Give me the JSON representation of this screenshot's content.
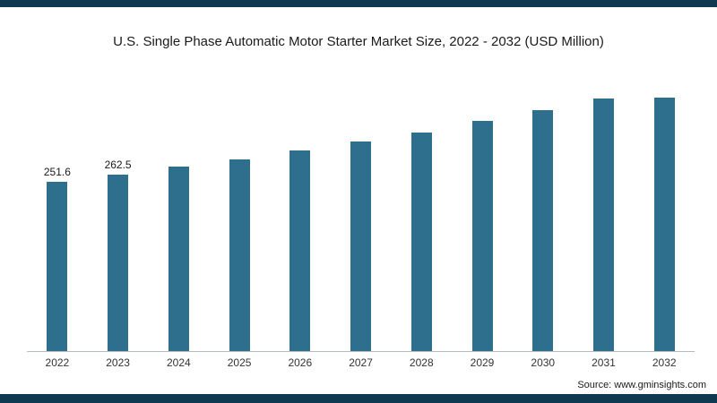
{
  "page": {
    "title": "U.S. Single Phase Automatic Motor Starter Market Size, 2022 - 2032 (USD Million)",
    "source": "Source: www.gminsights.com"
  },
  "colors": {
    "bar": "#2e6f8e",
    "strip": "#0e3951",
    "axis": "#b4bcc2"
  },
  "chart_data": {
    "type": "bar",
    "title": "U.S. Single Phase Automatic Motor Starter Market Size, 2022 - 2032 (USD Million)",
    "categories": [
      "2022",
      "2023",
      "2024",
      "2025",
      "2026",
      "2027",
      "2028",
      "2029",
      "2030",
      "2031",
      "2032"
    ],
    "values": [
      251.6,
      262.5,
      274,
      285,
      299,
      312,
      326,
      342,
      358,
      376,
      395
    ],
    "data_labels": [
      "251.6",
      "262.5",
      "",
      "",
      "",
      "",
      "",
      "",
      "",
      "",
      ""
    ],
    "xlabel": "",
    "ylabel": "",
    "ylim": [
      0,
      400
    ],
    "grid": false,
    "legend": "none"
  }
}
